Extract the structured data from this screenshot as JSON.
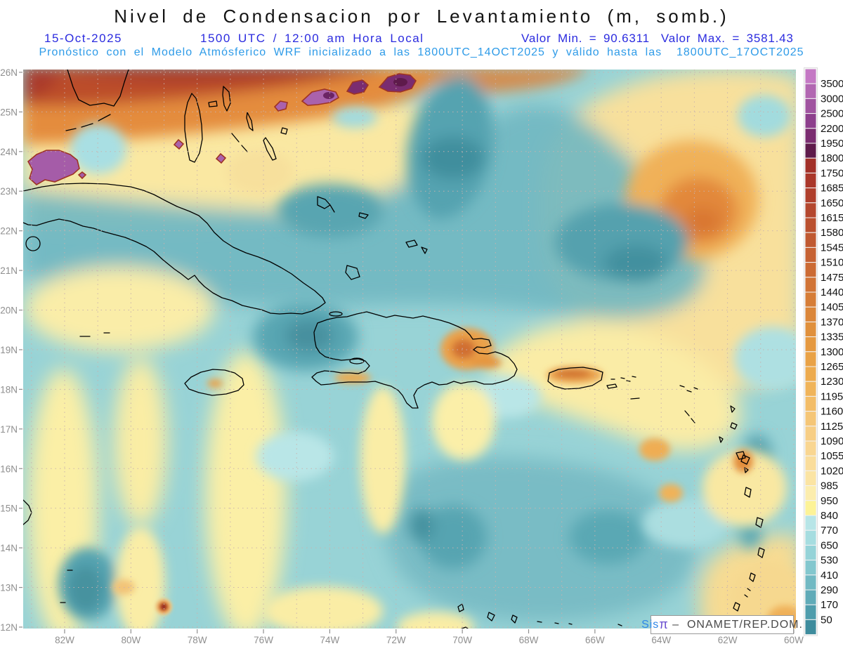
{
  "title": "Nivel de Condensacion por Levantamiento (m, somb.)",
  "header": {
    "date": "15-Oct-2025",
    "time": "1500 UTC / 12:00 am Hora Local",
    "min_label": "Valor Min. = 90.6311",
    "max_label": "Valor Max. = 3581.43",
    "forecast_line": "Pronóstico con el Modelo Atmósferico WRF inicializado a las 1800UTC_14OCT2025 y válido hasta las  1800UTC_17OCT2025"
  },
  "map": {
    "lat_labels": [
      "26N",
      "25N",
      "24N",
      "23N",
      "22N",
      "21N",
      "20N",
      "19N",
      "18N",
      "17N",
      "16N",
      "15N",
      "14N",
      "13N",
      "12N"
    ],
    "lon_labels": [
      "82W",
      "80W",
      "78W",
      "76W",
      "74W",
      "72W",
      "70W",
      "68W",
      "66W",
      "64W",
      "62W",
      "60W"
    ]
  },
  "colorbar": {
    "labels": [
      "3500",
      "3000",
      "2500",
      "2200",
      "1950",
      "1800",
      "1750",
      "1685",
      "1650",
      "1615",
      "1580",
      "1545",
      "1510",
      "1475",
      "1440",
      "1405",
      "1370",
      "1335",
      "1300",
      "1265",
      "1230",
      "1195",
      "1160",
      "1125",
      "1090",
      "1055",
      "1020",
      "985",
      "950",
      "840",
      "770",
      "650",
      "530",
      "410",
      "290",
      "170",
      "50"
    ],
    "colors_top_to_bottom": [
      "#C478C4",
      "#B267B2",
      "#A053A0",
      "#8D3F8D",
      "#7A2C70",
      "#5E1A4B",
      "#A23028",
      "#AA372A",
      "#AF3F2C",
      "#B4472E",
      "#BA502F",
      "#C05931",
      "#C66233",
      "#CC6B34",
      "#D17436",
      "#D67D37",
      "#DB8639",
      "#E0903C",
      "#E59940",
      "#E9A246",
      "#EDAB4E",
      "#F0B45A",
      "#F3BD68",
      "#F5C677",
      "#F7CE85",
      "#F9D691",
      "#FADD9B",
      "#FBE4A3",
      "#FCEDAD",
      "#FDF397",
      "#B7E5E7",
      "#A6DDE0",
      "#95D3D8",
      "#83C7CE",
      "#71B9C3",
      "#60ABB8",
      "#4F9DAC",
      "#3E8C9D"
    ]
  },
  "watermark": {
    "brand": "Sis",
    "pi": "π",
    "rest": " –  ONAMET/REP.DOM."
  },
  "chart_data": {
    "type": "heatmap",
    "title": "Nivel de Condensacion por Levantamiento (m, somb.)",
    "units": "m",
    "valid_date": "15-Oct-2025",
    "valid_time": "1500 UTC / 12:00 am Hora Local",
    "value_min": 90.6311,
    "value_max": 3581.43,
    "model": "WRF",
    "initialized": "1800UTC_14OCT2025",
    "valid_until": "1800UTC_17OCT2025",
    "region": {
      "lat_range": [
        "12N",
        "26N"
      ],
      "lon_range": [
        "83W",
        "60W"
      ]
    },
    "contour_levels_ascending": [
      50,
      170,
      290,
      410,
      530,
      650,
      770,
      840,
      950,
      985,
      1020,
      1055,
      1090,
      1125,
      1160,
      1195,
      1230,
      1265,
      1300,
      1335,
      1370,
      1405,
      1440,
      1475,
      1510,
      1545,
      1580,
      1615,
      1650,
      1685,
      1750,
      1800,
      1950,
      2200,
      2500,
      3000,
      3500
    ],
    "legend_position": "right",
    "notes": "Shaded LCL field: low values (teal) over Caribbean sea, high values (orange/red/purple) north of Cuba and mid-Atlantic ridge"
  }
}
